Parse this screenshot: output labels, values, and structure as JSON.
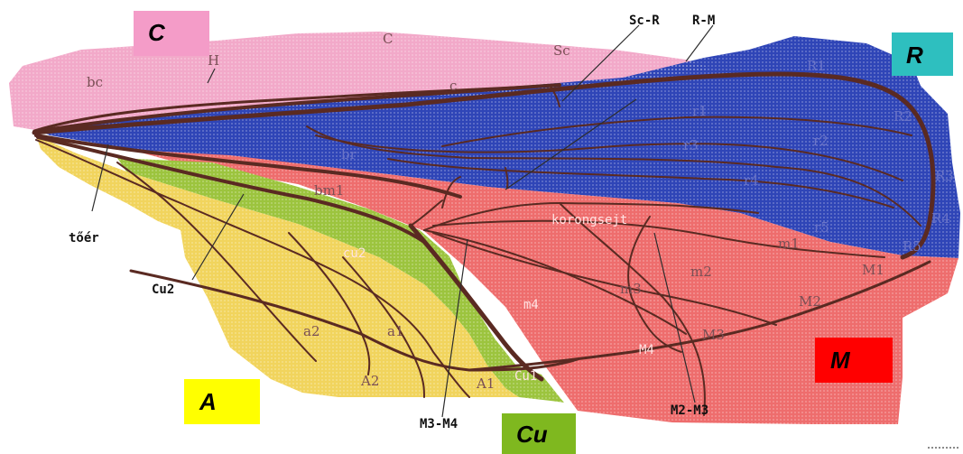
{
  "zones": {
    "C": {
      "label": "C",
      "color": "#f49cc8"
    },
    "R": {
      "label": "R",
      "color": "#2ebfbf"
    },
    "A": {
      "label": "A",
      "color": "#ffff00"
    },
    "Cu": {
      "label": "Cu",
      "color": "#7fb81f"
    },
    "M": {
      "label": "M",
      "color": "#ff0000"
    }
  },
  "region_colors": {
    "C": "#f2a9c9",
    "R": "#2f45b7",
    "A": "#f1d45d",
    "Cu": "#9cc43e",
    "M": "#ee6d6d",
    "vein": "#5a2a22"
  },
  "diagram_labels": {
    "C": "C",
    "Sc": "Sc",
    "bc": "bc",
    "c": "c",
    "H": "H",
    "R1": "R1",
    "R2": "R2",
    "r1": "r1",
    "r2": "r2",
    "r3": "r3",
    "r4": "r4",
    "r5": "r5",
    "R3": "R3",
    "R4": "R4",
    "R5": "R5",
    "br": "br",
    "bm1": "bm1",
    "korongsejt": "korongsejt",
    "m1": "m1",
    "m2": "m2",
    "m3": "m3",
    "m4": "m4",
    "M1": "M1",
    "M2": "M2",
    "M3": "M3",
    "M4": "M4",
    "cu2": "cu2",
    "Cu1": "Cu1",
    "a1": "a1",
    "a2": "a2",
    "A1": "A1",
    "A2": "A2"
  },
  "callouts": {
    "ScR": "Sc-R",
    "RM": "R-M",
    "toer": "tőér",
    "Cu2": "Cu2",
    "M3M4": "M3-M4",
    "M2M3": "M2-M3"
  }
}
